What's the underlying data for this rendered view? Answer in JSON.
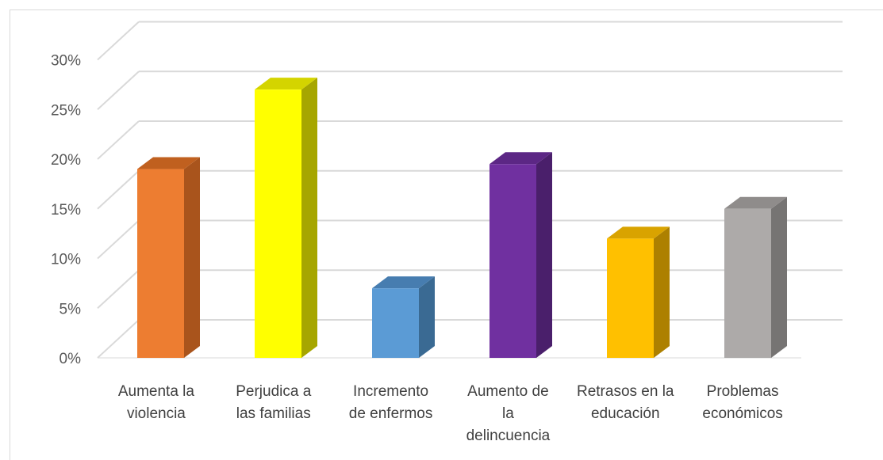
{
  "chart_data": {
    "type": "bar",
    "style": "3d-column",
    "categories": [
      [
        "Aumenta la",
        "violencia"
      ],
      [
        "Perjudica a",
        "las familias"
      ],
      [
        "Incremento",
        "de enfermos"
      ],
      [
        "Aumento de",
        "la",
        "delincuencia"
      ],
      [
        "Retrasos en la",
        "educación"
      ],
      [
        "Problemas",
        "económicos"
      ]
    ],
    "values": [
      19,
      27,
      7,
      19.5,
      12,
      15
    ],
    "ylim": [
      0,
      30
    ],
    "yticks": [
      0,
      5,
      10,
      15,
      20,
      25,
      30
    ],
    "ytick_labels": [
      "0%",
      "5%",
      "10%",
      "15%",
      "20%",
      "25%",
      "30%"
    ],
    "grid": true,
    "colors": [
      {
        "front": "#ED7D31",
        "side": "#A9541C",
        "top": "#C0601F"
      },
      {
        "front": "#FFFF00",
        "side": "#A6A600",
        "top": "#D4D400"
      },
      {
        "front": "#5B9BD5",
        "side": "#3A6A93",
        "top": "#477DB0"
      },
      {
        "front": "#7030A0",
        "side": "#4A1F6B",
        "top": "#5C2785"
      },
      {
        "front": "#FFC000",
        "side": "#AD8000",
        "top": "#D9A300"
      },
      {
        "front": "#ADAAA9",
        "side": "#767473",
        "top": "#8F8C8B"
      }
    ]
  }
}
